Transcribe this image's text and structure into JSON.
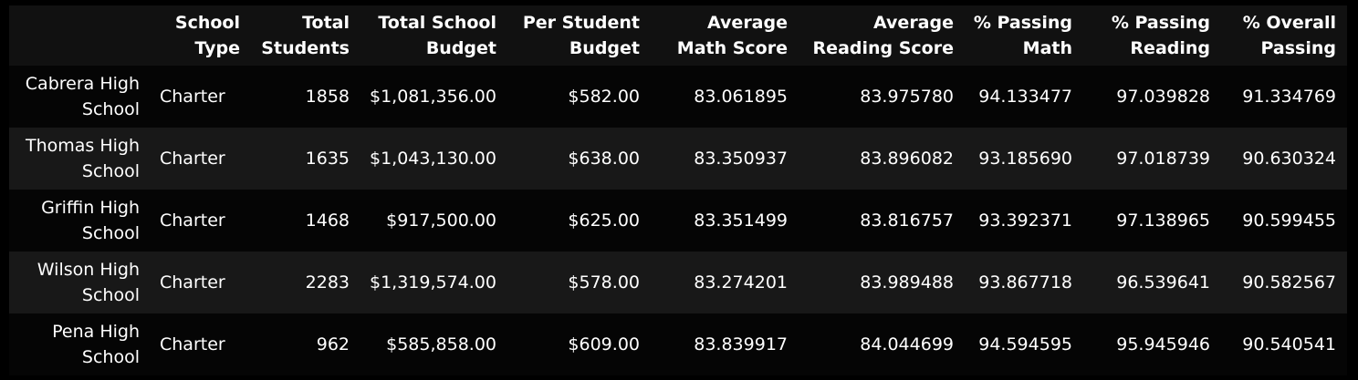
{
  "table": {
    "headers": [
      "",
      "School Type",
      "Total Students",
      "Total School Budget",
      "Per Student Budget",
      "Average Math Score",
      "Average Reading Score",
      "% Passing Math",
      "% Passing Reading",
      "% Overall Passing"
    ],
    "rows": [
      [
        "Cabrera High School",
        "Charter",
        "1858",
        "$1,081,356.00",
        "$582.00",
        "83.061895",
        "83.975780",
        "94.133477",
        "97.039828",
        "91.334769"
      ],
      [
        "Thomas High School",
        "Charter",
        "1635",
        "$1,043,130.00",
        "$638.00",
        "83.350937",
        "83.896082",
        "93.185690",
        "97.018739",
        "90.630324"
      ],
      [
        "Griffin High School",
        "Charter",
        "1468",
        "$917,500.00",
        "$625.00",
        "83.351499",
        "83.816757",
        "93.392371",
        "97.138965",
        "90.599455"
      ],
      [
        "Wilson High School",
        "Charter",
        "2283",
        "$1,319,574.00",
        "$578.00",
        "83.274201",
        "83.989488",
        "93.867718",
        "96.539641",
        "90.582567"
      ],
      [
        "Pena High School",
        "Charter",
        "962",
        "$585,858.00",
        "$609.00",
        "83.839917",
        "84.044699",
        "94.594595",
        "95.945946",
        "90.540541"
      ]
    ]
  }
}
